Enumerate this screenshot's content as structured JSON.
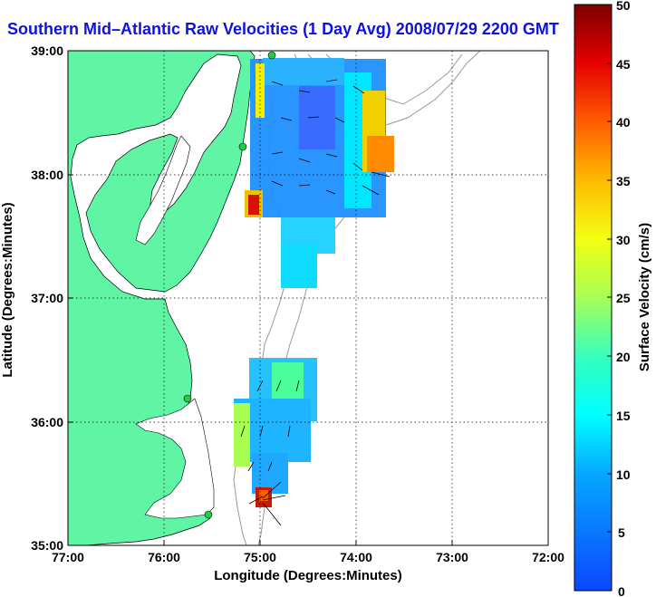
{
  "title": "Southern Mid–Atlantic Raw Velocities (1 Day Avg) 2008/07/29 2200 GMT",
  "map": {
    "xlabel": "Longitude (Degrees:Minutes)",
    "ylabel": "Latitude (Degrees:Minutes)",
    "x_ticks": [
      "77:00",
      "76:00",
      "75:00",
      "74:00",
      "73:00",
      "72:00"
    ],
    "y_ticks": [
      "39:00",
      "38:00",
      "37:00",
      "36:00",
      "35:00"
    ],
    "lon_range": [
      -77,
      -72
    ],
    "lat_range": [
      35,
      39
    ],
    "land_color": "#5ff5a5",
    "title_color": "#1010e0"
  },
  "colorbar": {
    "label": "Surface Velocity (cm/s)",
    "ticks": [
      "50",
      "45",
      "40",
      "35",
      "30",
      "25",
      "20",
      "15",
      "10",
      "5",
      "0"
    ],
    "range": [
      0,
      50
    ]
  }
}
